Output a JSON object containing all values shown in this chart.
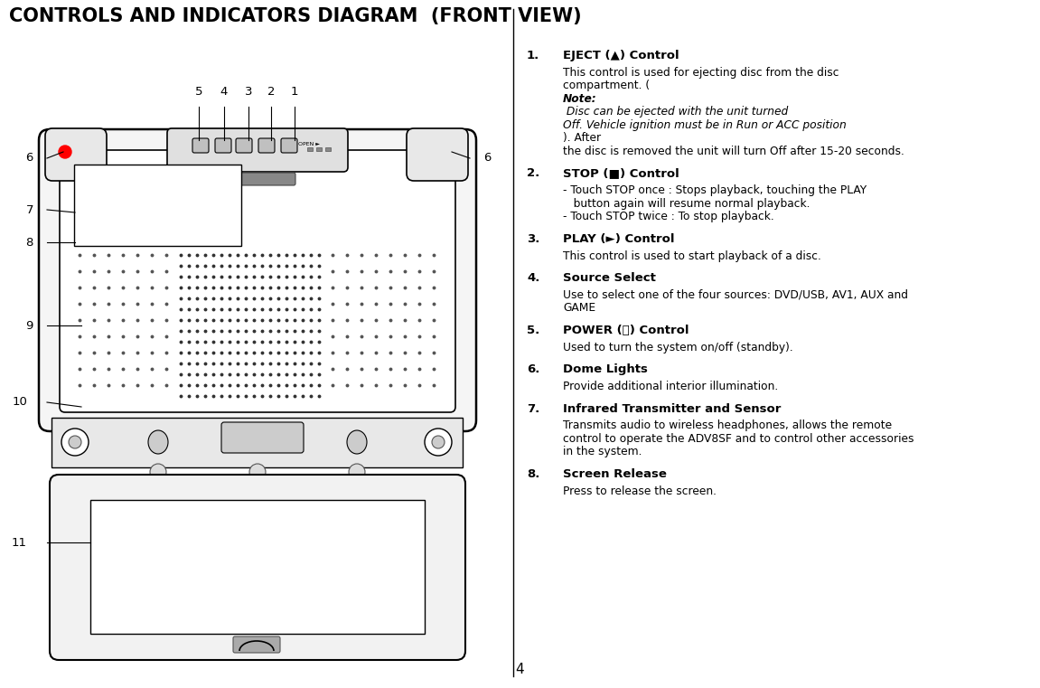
{
  "title": "CONTROLS AND INDICATORS DIAGRAM  (FRONT VIEW)",
  "title_fontsize": 15,
  "title_fontweight": "bold",
  "bg_color": "#ffffff",
  "text_color": "#000000",
  "page_number": "4",
  "items": [
    {
      "num": "1.",
      "heading": "EJECT (▲) Control",
      "lines": [
        {
          "text": "This control is used for ejecting disc from the disc",
          "style": "normal"
        },
        {
          "text": "compartment. (",
          "style": "normal",
          "cont": true
        },
        {
          "text": "Note:",
          "style": "bolditalic",
          "cont": true
        },
        {
          "text": " Disc can be ejected with the unit turned",
          "style": "italic",
          "eol": true
        },
        {
          "text": "Off. Vehicle ignition must be in Run or ACC position",
          "style": "italic",
          "cont": true
        },
        {
          "text": "). After",
          "style": "normal",
          "eol": true
        },
        {
          "text": "the disc is removed the unit will turn Off after 15-20 seconds.",
          "style": "normal"
        }
      ]
    },
    {
      "num": "2.",
      "heading": "STOP (■) Control",
      "lines": [
        {
          "text": "- Touch STOP once : Stops playback, touching the PLAY",
          "style": "normal"
        },
        {
          "text": "   button again will resume normal playback.",
          "style": "normal"
        },
        {
          "text": "- Touch STOP twice : To stop playback.",
          "style": "normal"
        }
      ]
    },
    {
      "num": "3.",
      "heading": "PLAY (►) Control",
      "lines": [
        {
          "text": "This control is used to start playback of a disc.",
          "style": "normal"
        }
      ]
    },
    {
      "num": "4.",
      "heading": "Source Select",
      "lines": [
        {
          "text": "Use to select one of the four sources: DVD/USB, AV1, AUX and",
          "style": "normal"
        },
        {
          "text": "GAME",
          "style": "normal"
        }
      ]
    },
    {
      "num": "5.",
      "heading": "POWER (⏻) Control",
      "lines": [
        {
          "text": "Used to turn the system on/off (standby).",
          "style": "normal"
        }
      ]
    },
    {
      "num": "6.",
      "heading": "Dome Lights",
      "lines": [
        {
          "text": "Provide additional interior illumination.",
          "style": "normal"
        }
      ]
    },
    {
      "num": "7.",
      "heading": "Infrared Transmitter and Sensor",
      "lines": [
        {
          "text": "Transmits audio to wireless headphones, allows the remote",
          "style": "normal"
        },
        {
          "text": "control to operate the ADV8SF and to control other accessories",
          "style": "normal"
        },
        {
          "text": "in the system.",
          "style": "normal"
        }
      ]
    },
    {
      "num": "8.",
      "heading": "Screen Release",
      "lines": [
        {
          "text": "Press to release the screen.",
          "style": "normal"
        }
      ]
    }
  ]
}
